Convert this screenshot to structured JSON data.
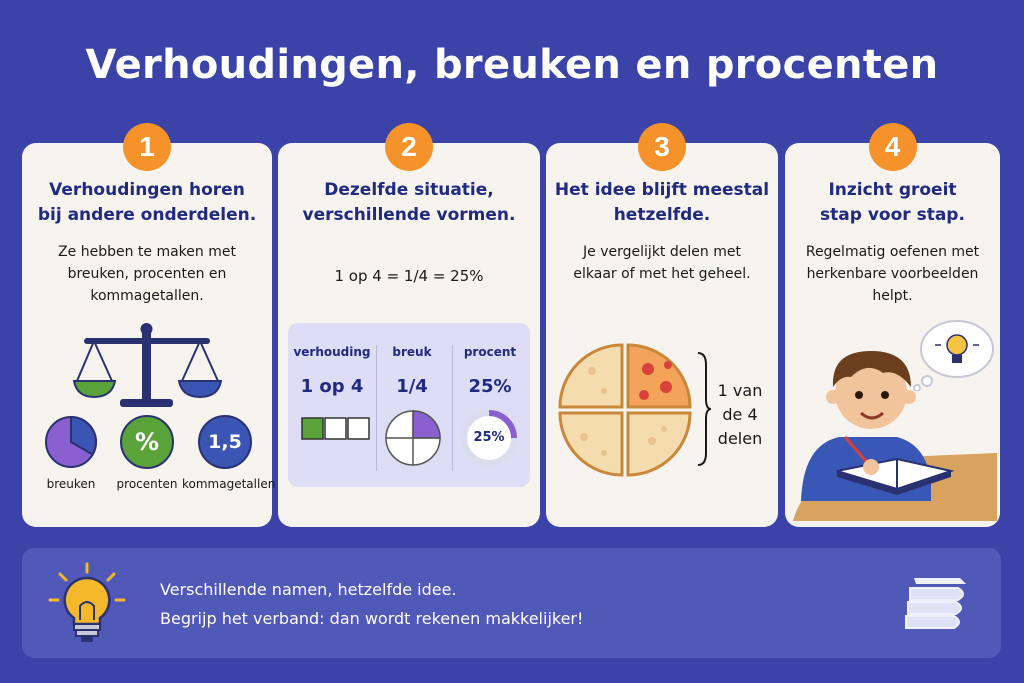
{
  "title": "Verhoudingen, breuken en procenten",
  "colors": {
    "background": "#3b42a8",
    "card": "#f7f4ef",
    "badge": "#f5922a",
    "heading": "#1f2a80",
    "green": "#5aa33a",
    "purple": "#8a5fd0",
    "blue": "#3a55b4"
  },
  "cards": [
    {
      "number": "1",
      "title_line1": "Verhoudingen horen",
      "title_line2": "bij andere onderdelen.",
      "text_lines": [
        "Ze hebben te maken met",
        "breuken, procenten en",
        "kommagetallen."
      ],
      "icons": [
        {
          "label": "breuken",
          "icon": "pie-icon"
        },
        {
          "label": "procenten",
          "icon": "percent-icon",
          "symbol": "%"
        },
        {
          "label": "kommagetallen",
          "icon": "decimal-icon",
          "symbol": "1,5"
        }
      ]
    },
    {
      "number": "2",
      "title_line1": "Dezelfde situatie,",
      "title_line2": "verschillende vormen.",
      "equation": "1 op 4 = 1/4 = 25%",
      "columns": [
        {
          "header": "verhouding",
          "value": "1 op 4"
        },
        {
          "header": "breuk",
          "value": "1/4"
        },
        {
          "header": "procent",
          "value": "25%",
          "circle_label": "25%"
        }
      ]
    },
    {
      "number": "3",
      "title_line1": "Het idee blijft meestal",
      "title_line2": "hetzelfde.",
      "text_lines": [
        "Je vergelijkt delen met",
        "elkaar of met het geheel."
      ],
      "pizza_label_lines": [
        "1 van",
        "de 4",
        "delen"
      ]
    },
    {
      "number": "4",
      "title_line1": "Inzicht groeit",
      "title_line2": "stap voor stap.",
      "text_lines": [
        "Regelmatig oefenen met",
        "herkenbare voorbeelden",
        "helpt."
      ]
    }
  ],
  "footer": {
    "line1": "Verschillende namen, hetzelfde idee.",
    "line2": "Begrijp het verband: dan wordt rekenen makkelijker!"
  }
}
